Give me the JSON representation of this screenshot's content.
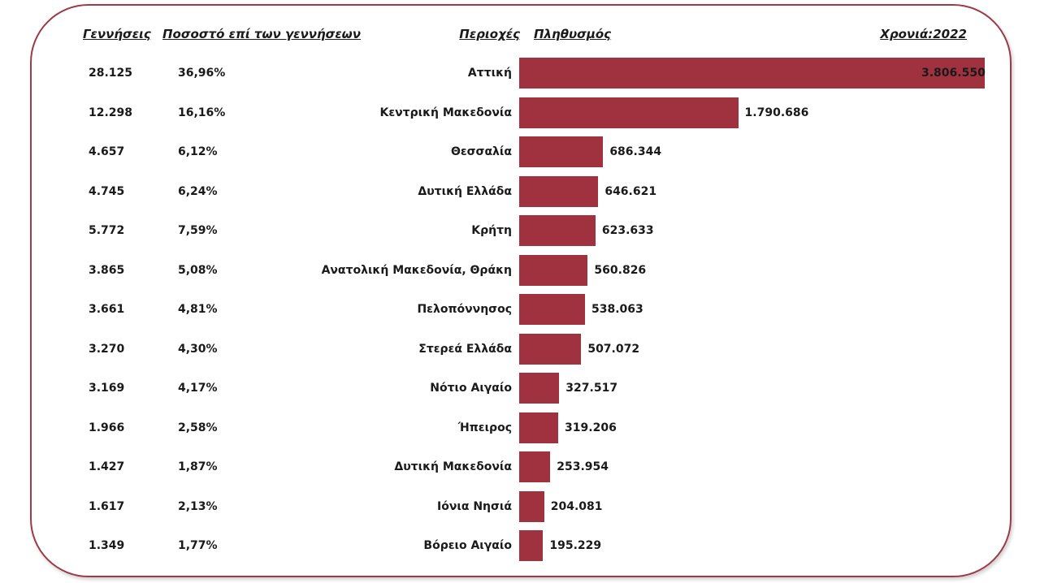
{
  "header": {
    "births": "Γεννήσεις",
    "percent": "Ποσοστό επί των γεννήσεων",
    "regions": "Περιοχές",
    "population": "Πληθυσμός",
    "year": "Χρονιά:2022"
  },
  "chart_data": {
    "type": "bar",
    "orientation": "horizontal",
    "categories": [
      "Αττική",
      "Κεντρική Μακεδονία",
      "Θεσσαλία",
      "Δυτική Ελλάδα",
      "Κρήτη",
      "Ανατολική Μακεδονία, Θράκη",
      "Πελοπόννησος",
      "Στερεά Ελλάδα",
      "Νότιο Αιγαίο",
      "Ήπειρος",
      "Δυτική Μακεδονία",
      "Ιόνια Νησιά",
      "Βόρειο Αιγαίο"
    ],
    "values": [
      3806550,
      1790686,
      686344,
      646621,
      623633,
      560826,
      538063,
      507072,
      327517,
      319206,
      253954,
      204081,
      195229
    ],
    "value_labels": [
      "3.806.550",
      "1.790.686",
      "686.344",
      "646.621",
      "623.633",
      "560.826",
      "538.063",
      "507.072",
      "327.517",
      "319.206",
      "253.954",
      "204.081",
      "195.229"
    ],
    "births": [
      "28.125",
      "12.298",
      "4.657",
      "4.745",
      "5.772",
      "3.865",
      "3.661",
      "3.270",
      "3.169",
      "1.966",
      "1.427",
      "1.617",
      "1.349"
    ],
    "percent_of_births": [
      "36,96%",
      "16,16%",
      "6,12%",
      "6,24%",
      "7,59%",
      "5,08%",
      "4,81%",
      "4,30%",
      "4,17%",
      "2,58%",
      "1,87%",
      "2,13%",
      "1,77%"
    ],
    "bar_color": "#a0323f",
    "grid": false,
    "legend": "none"
  }
}
